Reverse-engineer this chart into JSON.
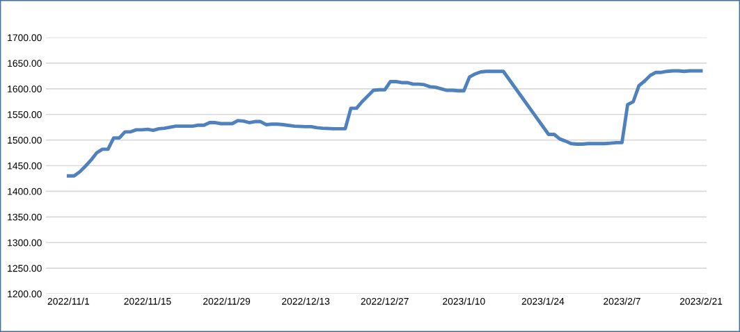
{
  "chart_data": {
    "type": "line",
    "x": [
      "2022-11-01",
      "2022-11-02",
      "2022-11-03",
      "2022-11-04",
      "2022-11-05",
      "2022-11-06",
      "2022-11-07",
      "2022-11-08",
      "2022-11-09",
      "2022-11-10",
      "2022-11-11",
      "2022-11-12",
      "2022-11-13",
      "2022-11-14",
      "2022-11-15",
      "2022-11-16",
      "2022-11-17",
      "2022-11-18",
      "2022-11-19",
      "2022-11-20",
      "2022-11-21",
      "2022-11-22",
      "2022-11-23",
      "2022-11-24",
      "2022-11-25",
      "2022-11-26",
      "2022-11-27",
      "2022-11-28",
      "2022-11-29",
      "2022-11-30",
      "2022-12-01",
      "2022-12-02",
      "2022-12-03",
      "2022-12-04",
      "2022-12-05",
      "2022-12-06",
      "2022-12-07",
      "2022-12-08",
      "2022-12-09",
      "2022-12-11",
      "2022-12-13",
      "2022-12-14",
      "2022-12-15",
      "2022-12-16",
      "2022-12-18",
      "2022-12-20",
      "2022-12-21",
      "2022-12-22",
      "2022-12-23",
      "2022-12-24",
      "2022-12-25",
      "2022-12-26",
      "2022-12-27",
      "2022-12-28",
      "2022-12-29",
      "2022-12-30",
      "2022-12-31",
      "2023-01-01",
      "2023-01-02",
      "2023-01-03",
      "2023-01-04",
      "2023-01-05",
      "2023-01-06",
      "2023-01-07",
      "2023-01-08",
      "2023-01-09",
      "2023-01-10",
      "2023-01-11",
      "2023-01-12",
      "2023-01-13",
      "2023-01-14",
      "2023-01-15",
      "2023-01-16",
      "2023-01-17",
      "2023-01-25",
      "2023-01-26",
      "2023-01-27",
      "2023-01-28",
      "2023-01-29",
      "2023-01-30",
      "2023-01-31",
      "2023-02-01",
      "2023-02-02",
      "2023-02-03",
      "2023-02-04",
      "2023-02-05",
      "2023-02-06",
      "2023-02-07",
      "2023-02-08",
      "2023-02-09",
      "2023-02-10",
      "2023-02-11",
      "2023-02-12",
      "2023-02-13",
      "2023-02-14",
      "2023-02-15",
      "2023-02-16",
      "2023-02-17",
      "2023-02-18",
      "2023-02-19",
      "2023-02-20",
      "2023-02-21"
    ],
    "series": [
      {
        "color": "#4f81bd",
        "values": [
          1430,
          1430,
          1438,
          1449,
          1461,
          1475,
          1482,
          1482,
          1504,
          1504,
          1516,
          1516,
          1520,
          1520,
          1521,
          1519,
          1522,
          1523,
          1525,
          1527,
          1527,
          1527,
          1527,
          1529,
          1529,
          1534,
          1534,
          1532,
          1532,
          1532,
          1538,
          1537,
          1534,
          1536,
          1536,
          1530,
          1531,
          1531,
          1530,
          1527,
          1526,
          1526,
          1524,
          1523,
          1522,
          1522,
          1562,
          1562,
          1575,
          1586,
          1597,
          1598,
          1598,
          1614,
          1614,
          1612,
          1612,
          1609,
          1609,
          1608,
          1604,
          1603,
          1600,
          1597,
          1597,
          1596,
          1596,
          1623,
          1629,
          1633,
          1634,
          1634,
          1634,
          1634,
          1511,
          1511,
          1502,
          1498,
          1493,
          1492,
          1492,
          1493,
          1493,
          1493,
          1493,
          1494,
          1495,
          1495,
          1569,
          1575,
          1606,
          1615,
          1626,
          1632,
          1632,
          1634,
          1635,
          1635,
          1634,
          1635,
          1635,
          1635
        ]
      }
    ],
    "xlim": [
      "2022-10-28",
      "2023-02-22"
    ],
    "xticks": [
      {
        "value": "2022-11-01",
        "label": "2022/11/1"
      },
      {
        "value": "2022-11-15",
        "label": "2022/11/15"
      },
      {
        "value": "2022-11-29",
        "label": "2022/11/29"
      },
      {
        "value": "2022-12-13",
        "label": "2022/12/13"
      },
      {
        "value": "2022-12-27",
        "label": "2022/12/27"
      },
      {
        "value": "2023-01-10",
        "label": "2023/1/10"
      },
      {
        "value": "2023-01-24",
        "label": "2023/1/24"
      },
      {
        "value": "2023-02-07",
        "label": "2023/2/7"
      },
      {
        "value": "2023-02-21",
        "label": "2023/2/21"
      }
    ],
    "ylim": [
      1200,
      1700
    ],
    "yticks": [
      {
        "value": 1200,
        "label": "1200.00"
      },
      {
        "value": 1250,
        "label": "1250.00"
      },
      {
        "value": 1300,
        "label": "1300.00"
      },
      {
        "value": 1350,
        "label": "1350.00"
      },
      {
        "value": 1400,
        "label": "1400.00"
      },
      {
        "value": 1450,
        "label": "1450.00"
      },
      {
        "value": 1500,
        "label": "1500.00"
      },
      {
        "value": 1550,
        "label": "1550.00"
      },
      {
        "value": 1600,
        "label": "1600.00"
      },
      {
        "value": 1650,
        "label": "1650.00"
      },
      {
        "value": 1700,
        "label": "1700.00"
      }
    ],
    "grid": "y",
    "marker": "none",
    "line_style": "solid"
  }
}
